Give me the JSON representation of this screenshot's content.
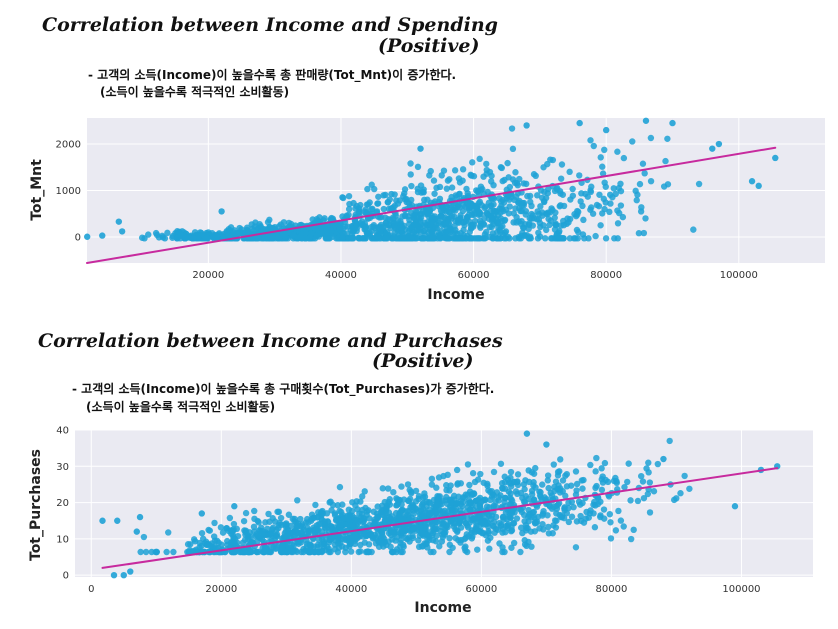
{
  "charts": [
    {
      "title_line1": "Correlation between Income and Spending",
      "title_line2": "(Positive)",
      "note_line1": "- 고객의 소득(Income)이 높을수록 총 판매량(Tot_Mnt)이 증가한다.",
      "note_line2": "(소득이 높을수록 적극적인 소비활동)"
    },
    {
      "title_line1": "Correlation between Income and Purchases",
      "title_line2": "(Positive)",
      "note_line1": "- 고객의 소득(Income)이 높을수록 총 구매횟수(Tot_Purchases)가 증가한다.",
      "note_line2": "(소득이 높을수록 적극적인 소비활동)"
    }
  ],
  "colors": {
    "point": "#1fa2d6",
    "line": "#c72a9e",
    "background": "#eaeaf2",
    "grid": "#ffffff"
  },
  "chart_data": [
    {
      "type": "scatter",
      "xlabel": "Income",
      "ylabel": "Tot_Mnt",
      "xlim": [
        1700,
        113000
      ],
      "ylim": [
        -560,
        2560
      ],
      "xticks": [
        20000,
        40000,
        60000,
        80000,
        100000
      ],
      "yticks": [
        0,
        1000,
        2000
      ],
      "grid": true,
      "regression_line": {
        "x": [
          1700,
          105500
        ],
        "y": [
          -560,
          1920
        ]
      },
      "sample_points": [
        {
          "x": 1730,
          "y": 5
        },
        {
          "x": 4000,
          "y": 30
        },
        {
          "x": 6500,
          "y": 330
        },
        {
          "x": 7000,
          "y": 120
        },
        {
          "x": 22000,
          "y": 550
        },
        {
          "x": 52000,
          "y": 1900
        },
        {
          "x": 68000,
          "y": 2400
        },
        {
          "x": 76000,
          "y": 2450
        },
        {
          "x": 80000,
          "y": 2300
        },
        {
          "x": 86000,
          "y": 2500
        },
        {
          "x": 90000,
          "y": 2450
        },
        {
          "x": 96000,
          "y": 1900
        },
        {
          "x": 97000,
          "y": 2000
        },
        {
          "x": 102000,
          "y": 1200
        },
        {
          "x": 103000,
          "y": 1100
        },
        {
          "x": 105500,
          "y": 1700
        }
      ]
    },
    {
      "type": "scatter",
      "xlabel": "Income",
      "ylabel": "Tot_Purchases",
      "xlim": [
        -2500,
        111000
      ],
      "ylim": [
        -0.5,
        40
      ],
      "xticks": [
        0,
        20000,
        40000,
        60000,
        80000,
        100000
      ],
      "yticks": [
        0,
        10,
        20,
        30,
        40
      ],
      "grid": true,
      "regression_line": {
        "x": [
          1730,
          105500
        ],
        "y": [
          2,
          29.5
        ]
      },
      "sample_points": [
        {
          "x": 1730,
          "y": 15
        },
        {
          "x": 4000,
          "y": 15
        },
        {
          "x": 3500,
          "y": 0
        },
        {
          "x": 5000,
          "y": 0
        },
        {
          "x": 6000,
          "y": 1
        },
        {
          "x": 7000,
          "y": 12
        },
        {
          "x": 7500,
          "y": 16
        },
        {
          "x": 17000,
          "y": 17
        },
        {
          "x": 22000,
          "y": 19
        },
        {
          "x": 67000,
          "y": 39
        },
        {
          "x": 70000,
          "y": 36
        },
        {
          "x": 88000,
          "y": 32
        },
        {
          "x": 103000,
          "y": 29
        },
        {
          "x": 105500,
          "y": 30
        },
        {
          "x": 99000,
          "y": 19
        }
      ]
    }
  ]
}
